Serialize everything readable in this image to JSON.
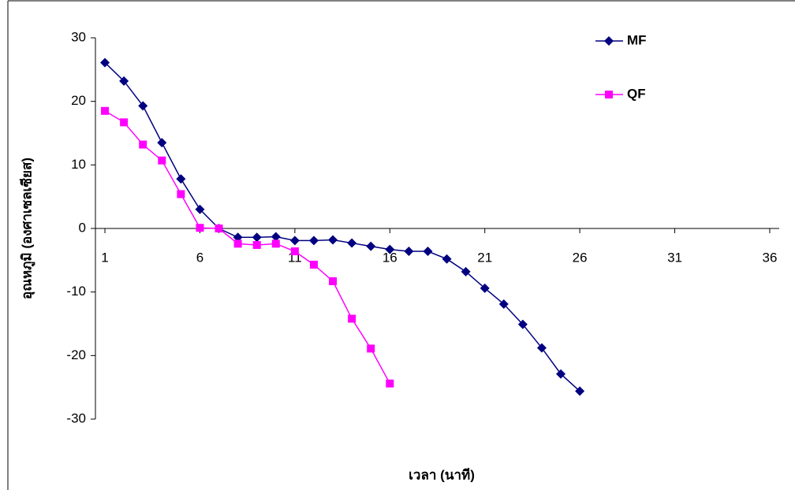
{
  "chart_data": {
    "type": "line",
    "x_label": "เวลา (นาที)",
    "y_label": "อุณหภูมิ (องศาเซลเซียส)",
    "x": [
      1,
      2,
      3,
      4,
      5,
      6,
      7,
      8,
      9,
      10,
      11,
      12,
      13,
      14,
      15,
      16,
      17,
      18,
      19,
      20,
      21,
      22,
      23,
      24,
      25,
      26
    ],
    "series": [
      {
        "name": "MF",
        "color": "#000080",
        "marker": "diamond",
        "values": [
          26.1,
          23.2,
          19.3,
          13.5,
          7.8,
          3.0,
          0,
          -1.4,
          -1.4,
          -1.3,
          -1.9,
          -1.9,
          -1.8,
          -2.3,
          -2.8,
          -3.3,
          -3.6,
          -3.6,
          -4.8,
          -6.8,
          -9.4,
          -11.9,
          -15.1,
          -18.8,
          -22.9,
          -25.6
        ]
      },
      {
        "name": "QF",
        "color": "#ff00ff",
        "marker": "square",
        "values": [
          18.5,
          16.7,
          13.2,
          10.7,
          5.4,
          0.1,
          0,
          -2.4,
          -2.6,
          -2.4,
          -3.6,
          -5.7,
          -8.3,
          -14.2,
          -18.9,
          -24.4,
          null,
          null,
          null,
          null,
          null,
          null,
          null,
          null,
          null,
          null
        ]
      }
    ],
    "xlim": [
      0.5,
      36.5
    ],
    "xticks": [
      1,
      6,
      11,
      16,
      21,
      26,
      31,
      36
    ],
    "ylim": [
      -30,
      30
    ],
    "yticks": [
      -30,
      -20,
      -10,
      0,
      10,
      20,
      30
    ],
    "legend": "upper-right"
  }
}
